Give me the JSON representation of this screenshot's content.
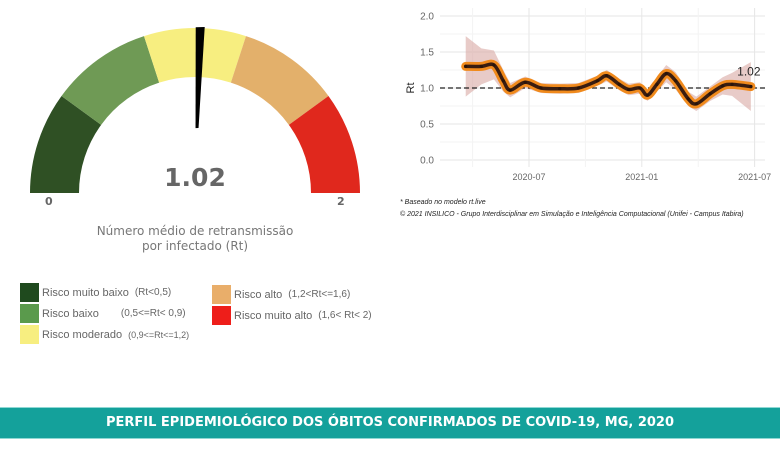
{
  "gauge": {
    "value": 1.02,
    "value_label": "1.02",
    "min": 0,
    "max": 2,
    "min_label": "0",
    "max_label": "2",
    "caption_line1": "Número médio de retransmissão",
    "caption_line2": "por infectado (Rt)",
    "segments": [
      {
        "color": "#2f5024"
      },
      {
        "color": "#6f9a55"
      },
      {
        "color": "#f7ee80"
      },
      {
        "color": "#e3b06b"
      },
      {
        "color": "#e0281d"
      }
    ]
  },
  "legend": [
    {
      "label": "Risco muito baixo",
      "range": "(Rt<0,5)",
      "color": "#1f4a1e"
    },
    {
      "label": "Risco baixo",
      "range": "(0,5<=Rt< 0,9)",
      "color": "#5a9a4c"
    },
    {
      "label": "Risco moderado",
      "range": "(0,9<=Rt<=1,2)",
      "color": "#f7ee80"
    },
    {
      "label": "Risco alto",
      "range": "(1,2<Rt<=1,6)",
      "color": "#e9ae6a"
    },
    {
      "label": "Risco muito alto",
      "range": "(1,6< Rt< 2)",
      "color": "#ee1e1a"
    }
  ],
  "chart_data": {
    "type": "line",
    "ylabel": "Rt",
    "ylim": [
      0,
      2.0
    ],
    "yticks": [
      "0.0",
      "0.5",
      "1.0",
      "1.5",
      "2.0"
    ],
    "xticks": [
      "2020-07",
      "2021-01",
      "2021-07"
    ],
    "reference_line": 1.0,
    "last_value_label": "1.02",
    "grid": true,
    "series": [
      {
        "name": "Rt",
        "x": [
          "2020-03-20",
          "2020-04-15",
          "2020-05-05",
          "2020-05-20",
          "2020-06-01",
          "2020-06-25",
          "2020-07-20",
          "2020-08-20",
          "2020-09-20",
          "2020-10-20",
          "2020-11-05",
          "2020-11-25",
          "2020-12-10",
          "2020-12-28",
          "2021-01-10",
          "2021-01-25",
          "2021-02-10",
          "2021-02-25",
          "2021-03-15",
          "2021-03-28",
          "2021-04-20",
          "2021-05-10",
          "2021-05-25",
          "2021-06-25"
        ],
        "values": [
          1.3,
          1.3,
          1.32,
          1.1,
          0.97,
          1.08,
          1.0,
          0.99,
          1.0,
          1.1,
          1.17,
          1.05,
          0.98,
          1.0,
          0.9,
          1.05,
          1.2,
          1.1,
          0.85,
          0.78,
          0.92,
          1.03,
          1.05,
          1.02
        ],
        "ci_halfwidth": [
          0.42,
          0.25,
          0.2,
          0.15,
          0.1,
          0.08,
          0.07,
          0.07,
          0.07,
          0.07,
          0.08,
          0.08,
          0.08,
          0.08,
          0.08,
          0.1,
          0.12,
          0.12,
          0.1,
          0.1,
          0.1,
          0.12,
          0.16,
          0.34
        ]
      }
    ]
  },
  "footnotes": {
    "line1": "* Baseado no modelo rt.live",
    "line2": "© 2021 INSILICO - Grupo Interdisciplinar em Simulação e Inteligência Computacional (Unifei - Campus Itabira)"
  },
  "banner": {
    "title": "PERFIL EPIDEMIOLÓGICO DOS ÓBITOS CONFIRMADOS DE COVID-19, MG, 2020"
  }
}
